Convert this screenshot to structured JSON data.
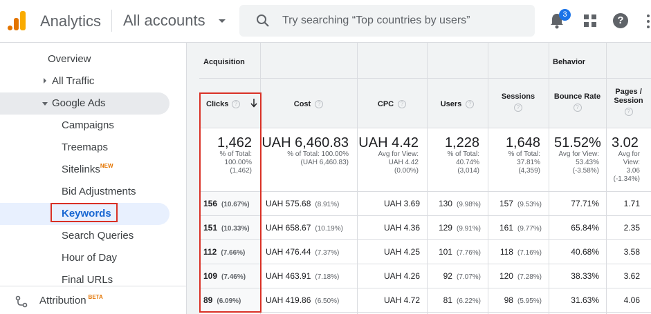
{
  "header": {
    "app_name": "Analytics",
    "accounts": "All accounts",
    "search_placeholder": "Try searching “Top countries by users”",
    "notif_count": "3",
    "help_label": "?"
  },
  "sidebar": {
    "items": [
      {
        "label": "Overview"
      },
      {
        "label": "All Traffic"
      },
      {
        "label": "Google Ads"
      },
      {
        "label": "Campaigns"
      },
      {
        "label": "Treemaps"
      },
      {
        "label": "Sitelinks",
        "badge": "NEW"
      },
      {
        "label": "Bid Adjustments"
      },
      {
        "label": "Keywords"
      },
      {
        "label": "Search Queries"
      },
      {
        "label": "Hour of Day"
      },
      {
        "label": "Final URLs"
      }
    ],
    "attribution": {
      "label": "Attribution",
      "badge": "BETA"
    }
  },
  "table": {
    "groups": {
      "acquisition": "Acquisition",
      "behavior": "Behavior"
    },
    "columns": {
      "clicks": "Clicks",
      "cost": "Cost",
      "cpc": "CPC",
      "users": "Users",
      "sessions": "Sessions",
      "bounce": "Bounce Rate",
      "pages_l1": "Pages /",
      "pages_l2": "Session",
      "q": "?"
    },
    "totals": {
      "clicks": {
        "value": "1,462",
        "l1": "% of Total:",
        "l2": "100.00%",
        "l3": "(1,462)"
      },
      "cost": {
        "value": "UAH 6,460.83",
        "l1": "% of Total: 100.00%",
        "l2": "(UAH 6,460.83)"
      },
      "cpc": {
        "value": "UAH 4.42",
        "l1": "Avg for View:",
        "l2": "UAH 4.42",
        "l3": "(0.00%)"
      },
      "users": {
        "value": "1,228",
        "l1": "% of Total:",
        "l2": "40.74%",
        "l3": "(3,014)"
      },
      "sessions": {
        "value": "1,648",
        "l1": "% of Total:",
        "l2": "37.81%",
        "l3": "(4,359)"
      },
      "bounce": {
        "value": "51.52%",
        "l1": "Avg for View:",
        "l2": "53.43%",
        "l3": "(-3.58%)"
      },
      "pages": {
        "value": "3.02",
        "l1": "Avg for",
        "l2": "View:",
        "l3": "3.06",
        "l4": "(-1.34%)"
      }
    },
    "rows": [
      {
        "clicks": "156",
        "clicks_pct": "(10.67%)",
        "cost": "UAH 575.68",
        "cost_pct": "(8.91%)",
        "cpc": "UAH 3.69",
        "users": "130",
        "users_pct": "(9.98%)",
        "sessions": "157",
        "sessions_pct": "(9.53%)",
        "bounce": "77.71%",
        "pages": "1.71"
      },
      {
        "clicks": "151",
        "clicks_pct": "(10.33%)",
        "cost": "UAH 658.67",
        "cost_pct": "(10.19%)",
        "cpc": "UAH 4.36",
        "users": "129",
        "users_pct": "(9.91%)",
        "sessions": "161",
        "sessions_pct": "(9.77%)",
        "bounce": "65.84%",
        "pages": "2.35"
      },
      {
        "clicks": "112",
        "clicks_pct": "(7.66%)",
        "cost": "UAH 476.44",
        "cost_pct": "(7.37%)",
        "cpc": "UAH 4.25",
        "users": "101",
        "users_pct": "(7.76%)",
        "sessions": "118",
        "sessions_pct": "(7.16%)",
        "bounce": "40.68%",
        "pages": "3.58"
      },
      {
        "clicks": "109",
        "clicks_pct": "(7.46%)",
        "cost": "UAH 463.91",
        "cost_pct": "(7.18%)",
        "cpc": "UAH 4.26",
        "users": "92",
        "users_pct": "(7.07%)",
        "sessions": "120",
        "sessions_pct": "(7.28%)",
        "bounce": "38.33%",
        "pages": "3.62"
      },
      {
        "clicks": "89",
        "clicks_pct": "(6.09%)",
        "cost": "UAH 419.86",
        "cost_pct": "(6.50%)",
        "cpc": "UAH 4.72",
        "users": "81",
        "users_pct": "(6.22%)",
        "sessions": "98",
        "sessions_pct": "(5.95%)",
        "bounce": "31.63%",
        "pages": "4.06"
      }
    ]
  }
}
